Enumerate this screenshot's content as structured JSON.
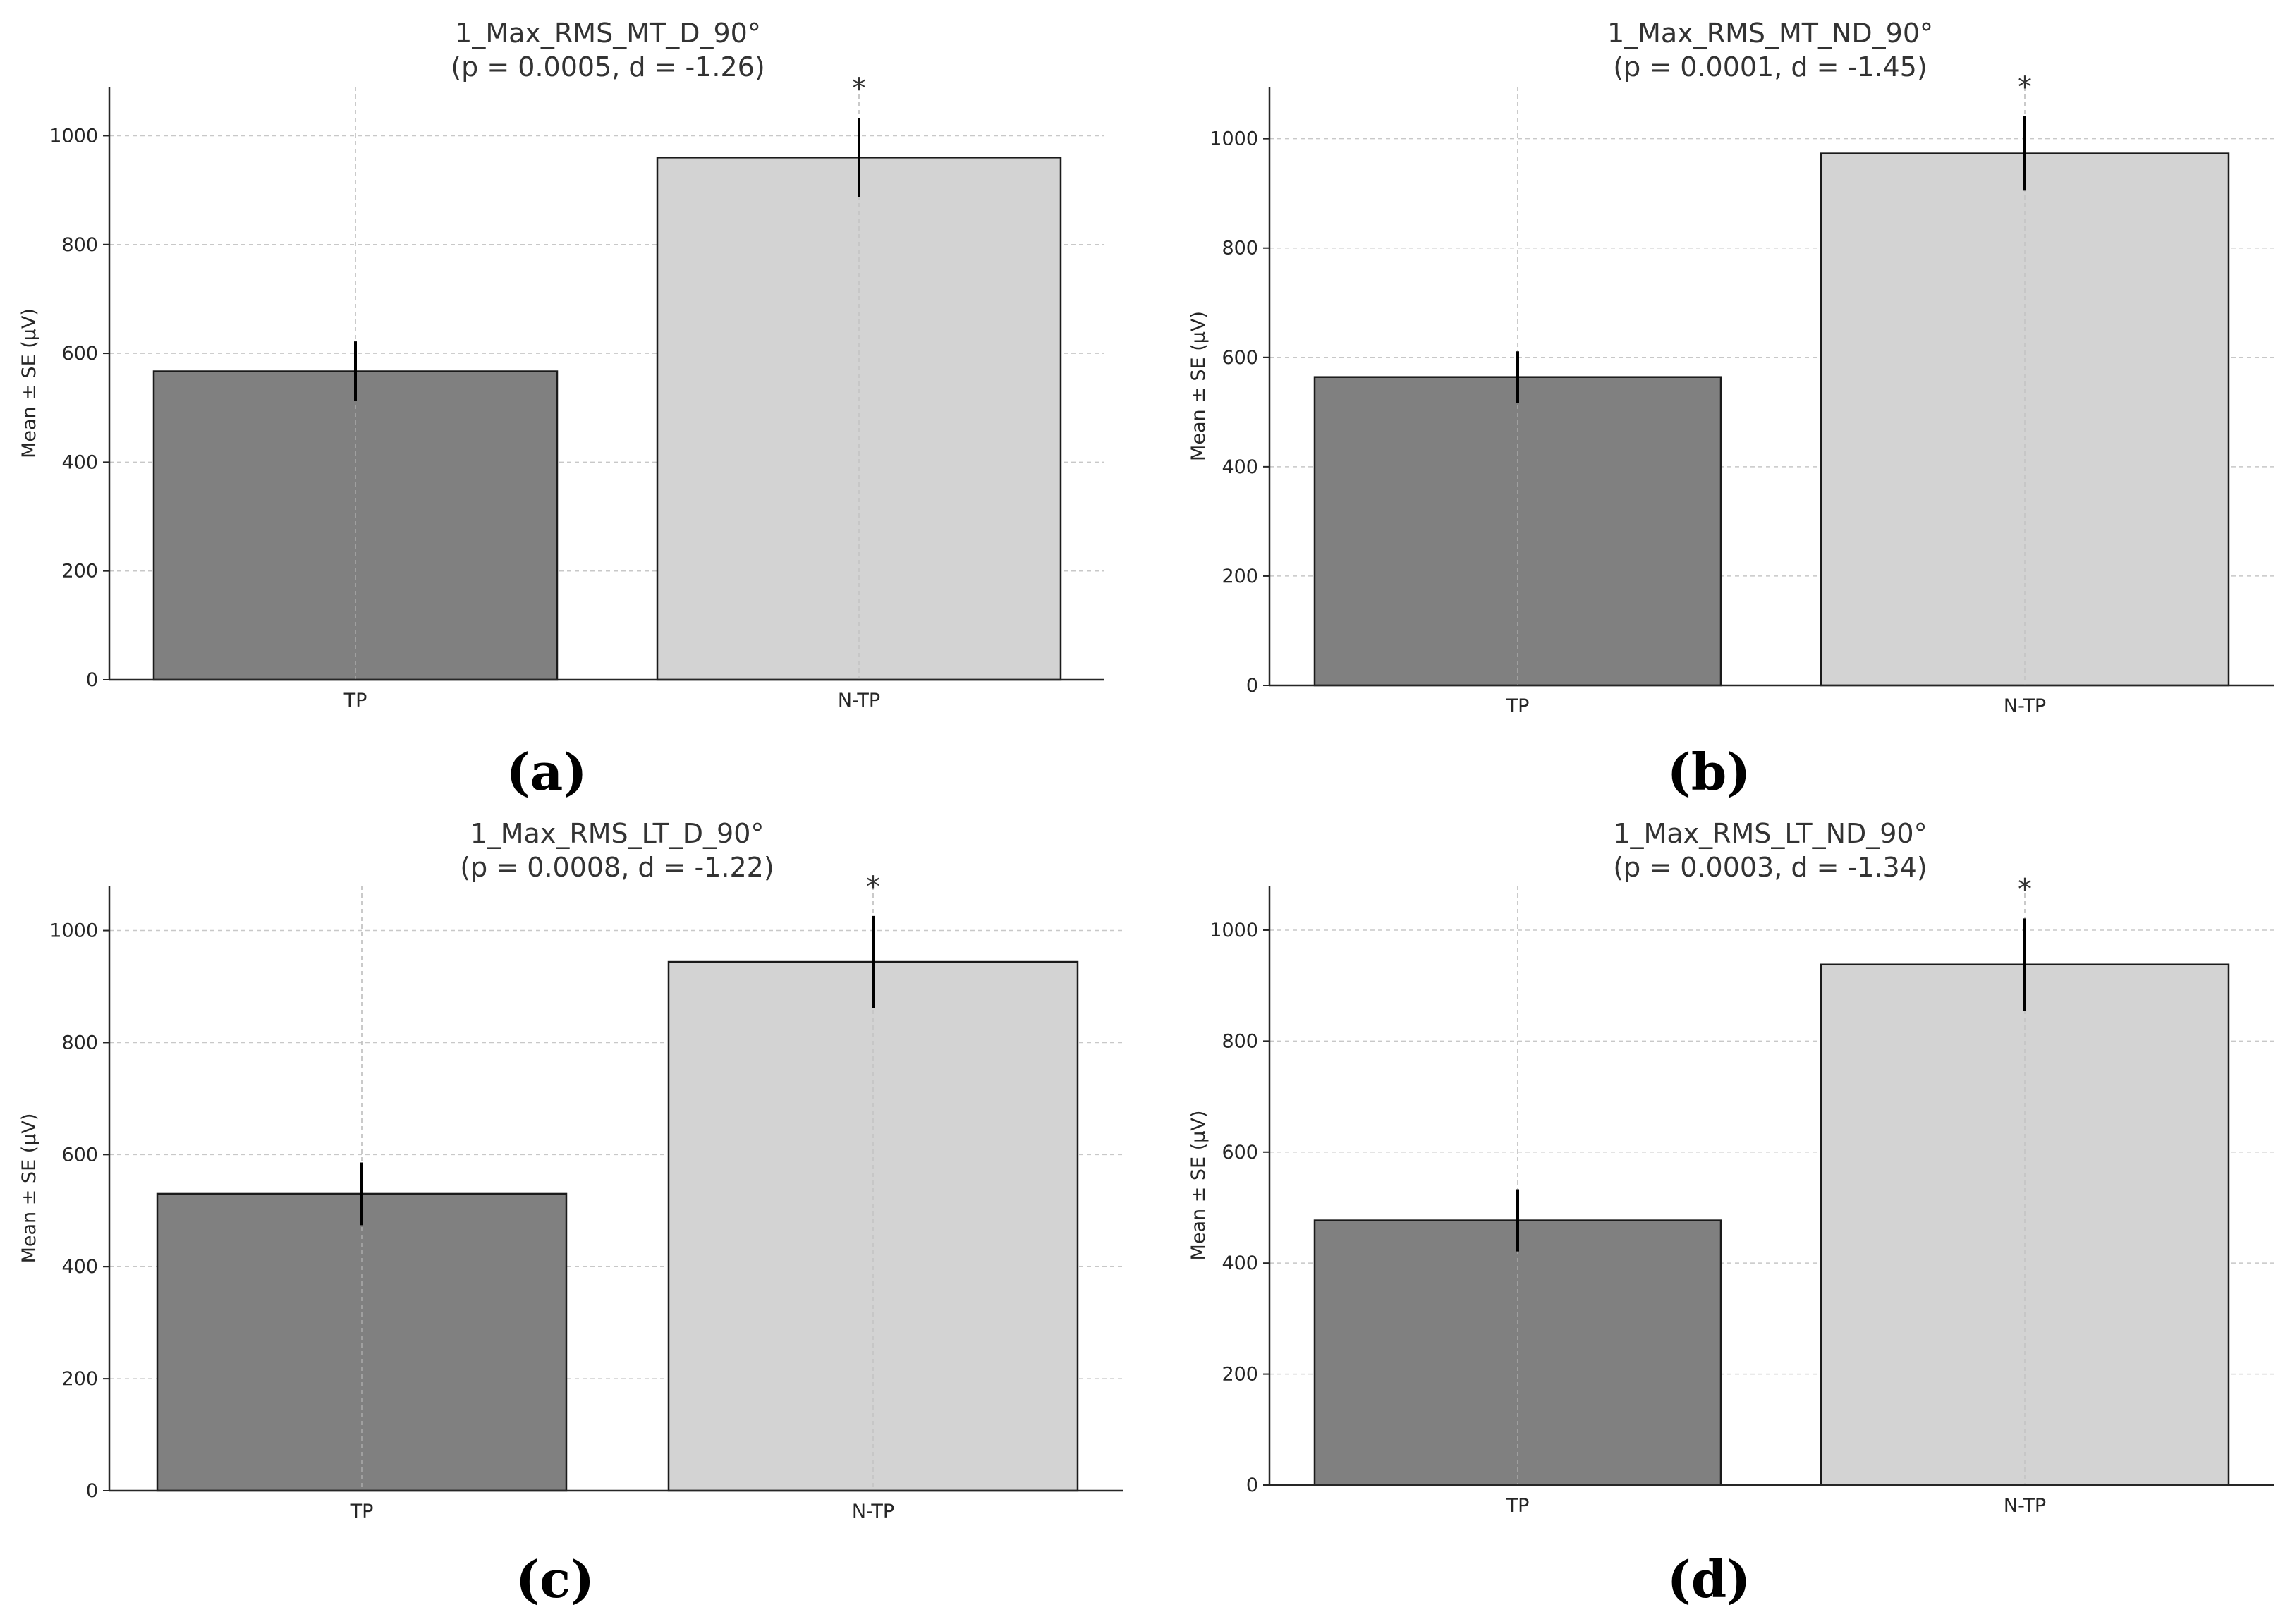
{
  "figure": {
    "y_axis_label": "Mean ± SE (μV)",
    "significance_marker": "*"
  },
  "chart_data": [
    {
      "type": "bar",
      "panel": "(a)",
      "title_line1": "1_Max_RMS_MT_D_90°",
      "title_line2": "(p = 0.0005, d = -1.26)",
      "ylabel": "Mean ± SE (μV)",
      "categories": [
        "TP",
        "N-TP"
      ],
      "values": [
        567,
        960
      ],
      "errors": [
        55,
        73
      ],
      "ylim": [
        0,
        1090
      ],
      "yticks": [
        0,
        200,
        400,
        600,
        800,
        1000
      ],
      "significant_category": "N-TP",
      "grid": true,
      "colors": [
        "#808080",
        "#d3d3d3"
      ]
    },
    {
      "type": "bar",
      "panel": "(b)",
      "title_line1": "1_Max_RMS_MT_ND_90°",
      "title_line2": "(p = 0.0001, d = -1.45)",
      "ylabel": "Mean ± SE (μV)",
      "categories": [
        "TP",
        "N-TP"
      ],
      "values": [
        564,
        973
      ],
      "errors": [
        47,
        68
      ],
      "ylim": [
        0,
        1095
      ],
      "yticks": [
        0,
        200,
        400,
        600,
        800,
        1000
      ],
      "significant_category": "N-TP",
      "grid": true,
      "colors": [
        "#808080",
        "#d3d3d3"
      ]
    },
    {
      "type": "bar",
      "panel": "(c)",
      "title_line1": "1_Max_RMS_LT_D_90°",
      "title_line2": "(p = 0.0008, d = -1.22)",
      "ylabel": "Mean ± SE (μV)",
      "categories": [
        "TP",
        "N-TP"
      ],
      "values": [
        530,
        944
      ],
      "errors": [
        56,
        82
      ],
      "ylim": [
        0,
        1080
      ],
      "yticks": [
        0,
        200,
        400,
        600,
        800,
        1000
      ],
      "significant_category": "N-TP",
      "grid": true,
      "colors": [
        "#808080",
        "#d3d3d3"
      ]
    },
    {
      "type": "bar",
      "panel": "(d)",
      "title_line1": "1_Max_RMS_LT_ND_90°",
      "title_line2": "(p = 0.0003, d = -1.34)",
      "ylabel": "Mean ± SE (μV)",
      "categories": [
        "TP",
        "N-TP"
      ],
      "values": [
        477,
        938
      ],
      "errors": [
        56,
        83
      ],
      "ylim": [
        0,
        1080
      ],
      "yticks": [
        0,
        200,
        400,
        600,
        800,
        1000
      ],
      "significant_category": "N-TP",
      "grid": true,
      "colors": [
        "#808080",
        "#d3d3d3"
      ]
    }
  ]
}
